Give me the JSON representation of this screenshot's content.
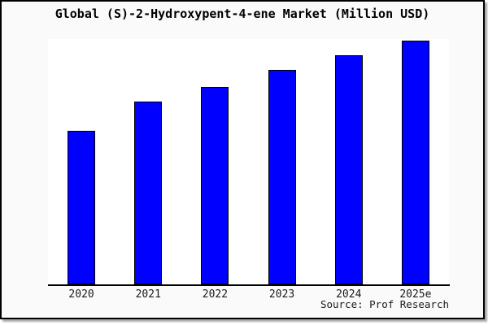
{
  "chart_data": {
    "type": "bar",
    "title": "Global (S)-2-Hydroxypent-4-ene Market (Million USD)",
    "categories": [
      "2020",
      "2021",
      "2022",
      "2023",
      "2024",
      "2025e"
    ],
    "values": [
      63,
      75,
      81,
      88,
      94,
      100
    ],
    "xlabel": "",
    "ylabel": "",
    "ylim": [
      0,
      100.5
    ],
    "grid": false,
    "legend": false,
    "y_axis_ticks_visible": false,
    "source": "Source: Prof Research",
    "colors": {
      "bar_fill": "#0000ff",
      "bar_border": "#000000",
      "background": "#fafafa",
      "plot_background": "#ffffff",
      "axis": "#000000",
      "text": "#000000"
    }
  }
}
